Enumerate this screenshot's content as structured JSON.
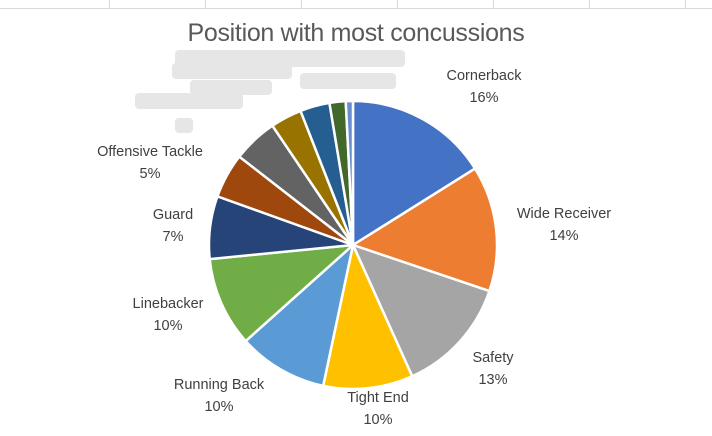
{
  "chart_data": {
    "type": "pie",
    "title": "Position with most concussions",
    "slices": [
      {
        "label": "Cornerback",
        "value": 16,
        "display": "16%",
        "color": "#4472C4",
        "labeled": true
      },
      {
        "label": "Wide Receiver",
        "value": 14,
        "display": "14%",
        "color": "#ED7D31",
        "labeled": true
      },
      {
        "label": "Safety",
        "value": 13,
        "display": "13%",
        "color": "#A5A5A5",
        "labeled": true
      },
      {
        "label": "Tight End",
        "value": 10,
        "display": "10%",
        "color": "#FFC000",
        "labeled": true
      },
      {
        "label": "Running Back",
        "value": 10,
        "display": "10%",
        "color": "#5B9BD5",
        "labeled": true
      },
      {
        "label": "Linebacker",
        "value": 10,
        "display": "10%",
        "color": "#70AD47",
        "labeled": true
      },
      {
        "label": "Guard",
        "value": 7,
        "display": "7%",
        "color": "#264478",
        "labeled": true
      },
      {
        "label": "",
        "value": 5,
        "display": "",
        "color": "#9E480E",
        "labeled": false
      },
      {
        "label": "Offensive Tackle",
        "value": 5,
        "display": "5%",
        "color": "#636363",
        "labeled": true
      },
      {
        "label": "",
        "value": 3.5,
        "display": "",
        "color": "#997300",
        "labeled": false
      },
      {
        "label": "",
        "value": 3.3,
        "display": "",
        "color": "#255E91",
        "labeled": false
      },
      {
        "label": "",
        "value": 1.8,
        "display": "",
        "color": "#43682B",
        "labeled": false
      },
      {
        "label": "",
        "value": 0.8,
        "display": "",
        "color": "#698ED0",
        "labeled": false
      }
    ],
    "legend": "none"
  }
}
